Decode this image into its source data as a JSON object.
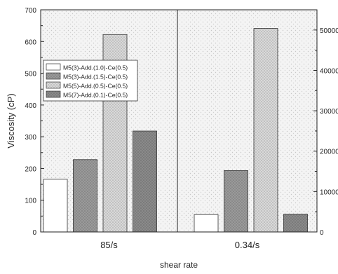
{
  "chart_data": {
    "type": "bar",
    "xlabel": "shear rate",
    "ylabel": "Viscosity (cP)",
    "groups": [
      "85/s",
      "0.34/s"
    ],
    "group_axis": [
      "left",
      "right"
    ],
    "left_axis": {
      "ylim": [
        0,
        700
      ],
      "ticks": [
        0,
        100,
        200,
        300,
        400,
        500,
        600,
        700
      ]
    },
    "right_axis": {
      "ylim": [
        0,
        55000
      ],
      "ticks": [
        0,
        10000,
        20000,
        30000,
        40000,
        50000
      ]
    },
    "series": [
      {
        "name": "M5(3)-Add.(1.0)-Ce(0.5)",
        "values": [
          166,
          4300
        ],
        "fill": "#ffffff"
      },
      {
        "name": "M5(3)-Add.(1.5)-Ce(0.5)",
        "values": [
          228,
          15200
        ],
        "fill": "#9a9a9a"
      },
      {
        "name": "M5(5)-Add.(0.5)-Ce(0.5)",
        "values": [
          622,
          50400
        ],
        "fill": "#d9d9d9"
      },
      {
        "name": "M5(7)-Add.(0.1)-Ce(0.5)",
        "values": [
          318,
          4400
        ],
        "fill": "#8a8a8a"
      }
    ],
    "grid": false,
    "legend_position": "upper-left"
  }
}
